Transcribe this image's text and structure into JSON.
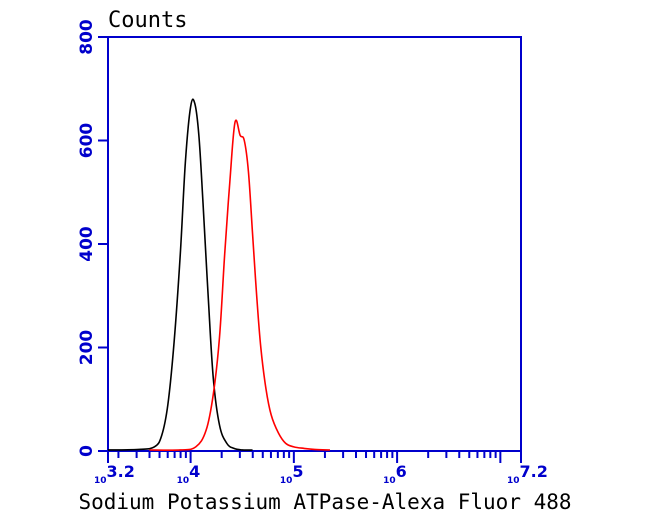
{
  "chart_data": {
    "type": "line",
    "title": "",
    "ylabel": "Counts",
    "xlabel": "Sodium Potassium ATPase-Alexa Fluor 488",
    "x_scale": "log10",
    "xlim": [
      3.2,
      7.2
    ],
    "ylim": [
      0,
      800
    ],
    "y_ticks": [
      0,
      200,
      400,
      600,
      800
    ],
    "x_tick_labels": [
      {
        "base": "10",
        "exp": "3.2",
        "value": 3.2
      },
      {
        "base": "10",
        "exp": "4",
        "value": 4
      },
      {
        "base": "10",
        "exp": "5",
        "value": 5
      },
      {
        "base": "10",
        "exp": "6",
        "value": 6
      },
      {
        "base": "10",
        "exp": "7.2",
        "value": 7.2
      }
    ],
    "grid": false,
    "series": [
      {
        "color": "#000000",
        "x": [
          3.2,
          3.5,
          3.65,
          3.72,
          3.78,
          3.84,
          3.9,
          3.95,
          4.0,
          4.04,
          4.08,
          4.12,
          4.17,
          4.22,
          4.28,
          4.35,
          4.42,
          4.5,
          4.6
        ],
        "y": [
          2,
          3,
          8,
          30,
          90,
          210,
          380,
          560,
          665,
          672,
          610,
          480,
          300,
          140,
          50,
          15,
          5,
          2,
          0
        ]
      },
      {
        "color": "#ff0000",
        "x": [
          3.6,
          3.9,
          4.05,
          4.15,
          4.22,
          4.28,
          4.33,
          4.38,
          4.43,
          4.48,
          4.52,
          4.56,
          4.6,
          4.64,
          4.68,
          4.73,
          4.78,
          4.85,
          4.92,
          5.0,
          5.1,
          5.2,
          5.35
        ],
        "y": [
          0,
          2,
          8,
          40,
          110,
          220,
          380,
          520,
          635,
          610,
          600,
          540,
          420,
          300,
          200,
          120,
          70,
          35,
          15,
          8,
          5,
          3,
          0
        ]
      }
    ]
  },
  "colors": {
    "axis": "#0000cc",
    "black_series": "#000000",
    "red_series": "#ff0000"
  }
}
